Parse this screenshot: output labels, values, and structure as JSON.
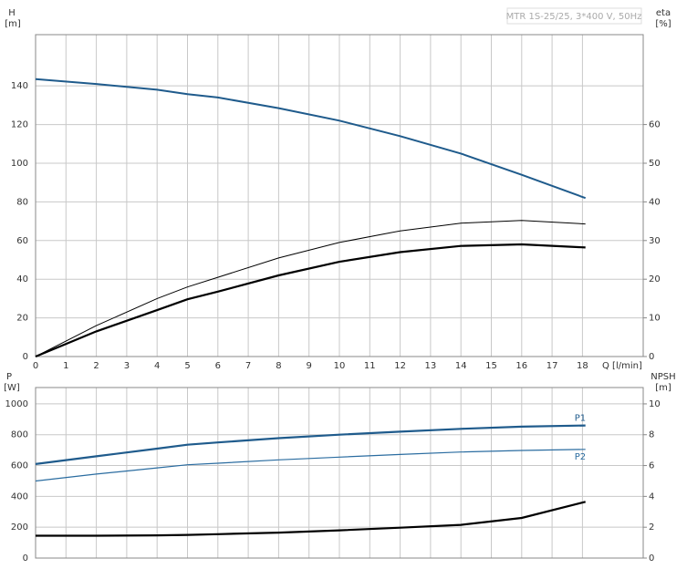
{
  "chart_data": [
    {
      "type": "line",
      "title": "MTR 1S-25/25, 3*400 V, 50Hz",
      "ylabel": "H",
      "ylabel_unit": "[m]",
      "y2label": "eta",
      "y2label_unit": "[%]",
      "xlabel": "Q [l/min]",
      "x": [
        0,
        2,
        4,
        5,
        6,
        8,
        10,
        12,
        14,
        16,
        18.1
      ],
      "xlim": [
        0,
        20
      ],
      "xticks": [
        0,
        1,
        2,
        3,
        4,
        5,
        6,
        7,
        8,
        9,
        10,
        11,
        12,
        13,
        14,
        15,
        16,
        17,
        18
      ],
      "ylim": [
        0,
        166.5
      ],
      "yticks": [
        0,
        20,
        40,
        60,
        80,
        100,
        120,
        140
      ],
      "y2lim": [
        0,
        83.25
      ],
      "y2ticks": [
        0,
        10,
        20,
        30,
        40,
        50,
        60
      ],
      "grid": true,
      "series": [
        {
          "color": "#1f5b8c",
          "values": [
            143.5,
            141,
            138,
            135.7,
            134,
            128.5,
            122,
            114,
            105,
            94,
            82
          ]
        },
        {
          "color": "#000000",
          "axis": "y2",
          "values": [
            0,
            8,
            15,
            18,
            20.5,
            25.5,
            29.5,
            32.5,
            34.5,
            35.2,
            34.3
          ]
        },
        {
          "color": "#000000",
          "axis": "y2",
          "values": [
            0,
            6.5,
            12,
            14.8,
            16.8,
            21,
            24.5,
            27,
            28.6,
            29,
            28.2
          ]
        }
      ]
    },
    {
      "type": "line",
      "ylabel": "P",
      "ylabel_unit": "[W]",
      "y2label": "NPSH",
      "y2label_unit": "[m]",
      "x": [
        0,
        2,
        4,
        5,
        6,
        8,
        10,
        12,
        14,
        16,
        18.1
      ],
      "xlim": [
        0,
        20
      ],
      "ylim": [
        0,
        1106
      ],
      "yticks": [
        0,
        200,
        400,
        600,
        800,
        1000
      ],
      "y2lim": [
        0,
        11.06
      ],
      "y2ticks": [
        0,
        2,
        4,
        6,
        8,
        10
      ],
      "grid": true,
      "series": [
        {
          "name": "P1",
          "color": "#1f5b8c",
          "values": [
            610,
            660,
            710,
            735,
            750,
            778,
            800,
            820,
            838,
            852,
            860
          ]
        },
        {
          "name": "P2",
          "color": "#2a6ca0",
          "values": [
            500,
            545,
            585,
            605,
            615,
            637,
            655,
            672,
            688,
            698,
            705
          ]
        },
        {
          "color": "#000000",
          "axis": "y2",
          "values": [
            1.45,
            1.45,
            1.47,
            1.5,
            1.55,
            1.65,
            1.8,
            1.97,
            2.15,
            2.6,
            3.65
          ]
        }
      ]
    }
  ]
}
